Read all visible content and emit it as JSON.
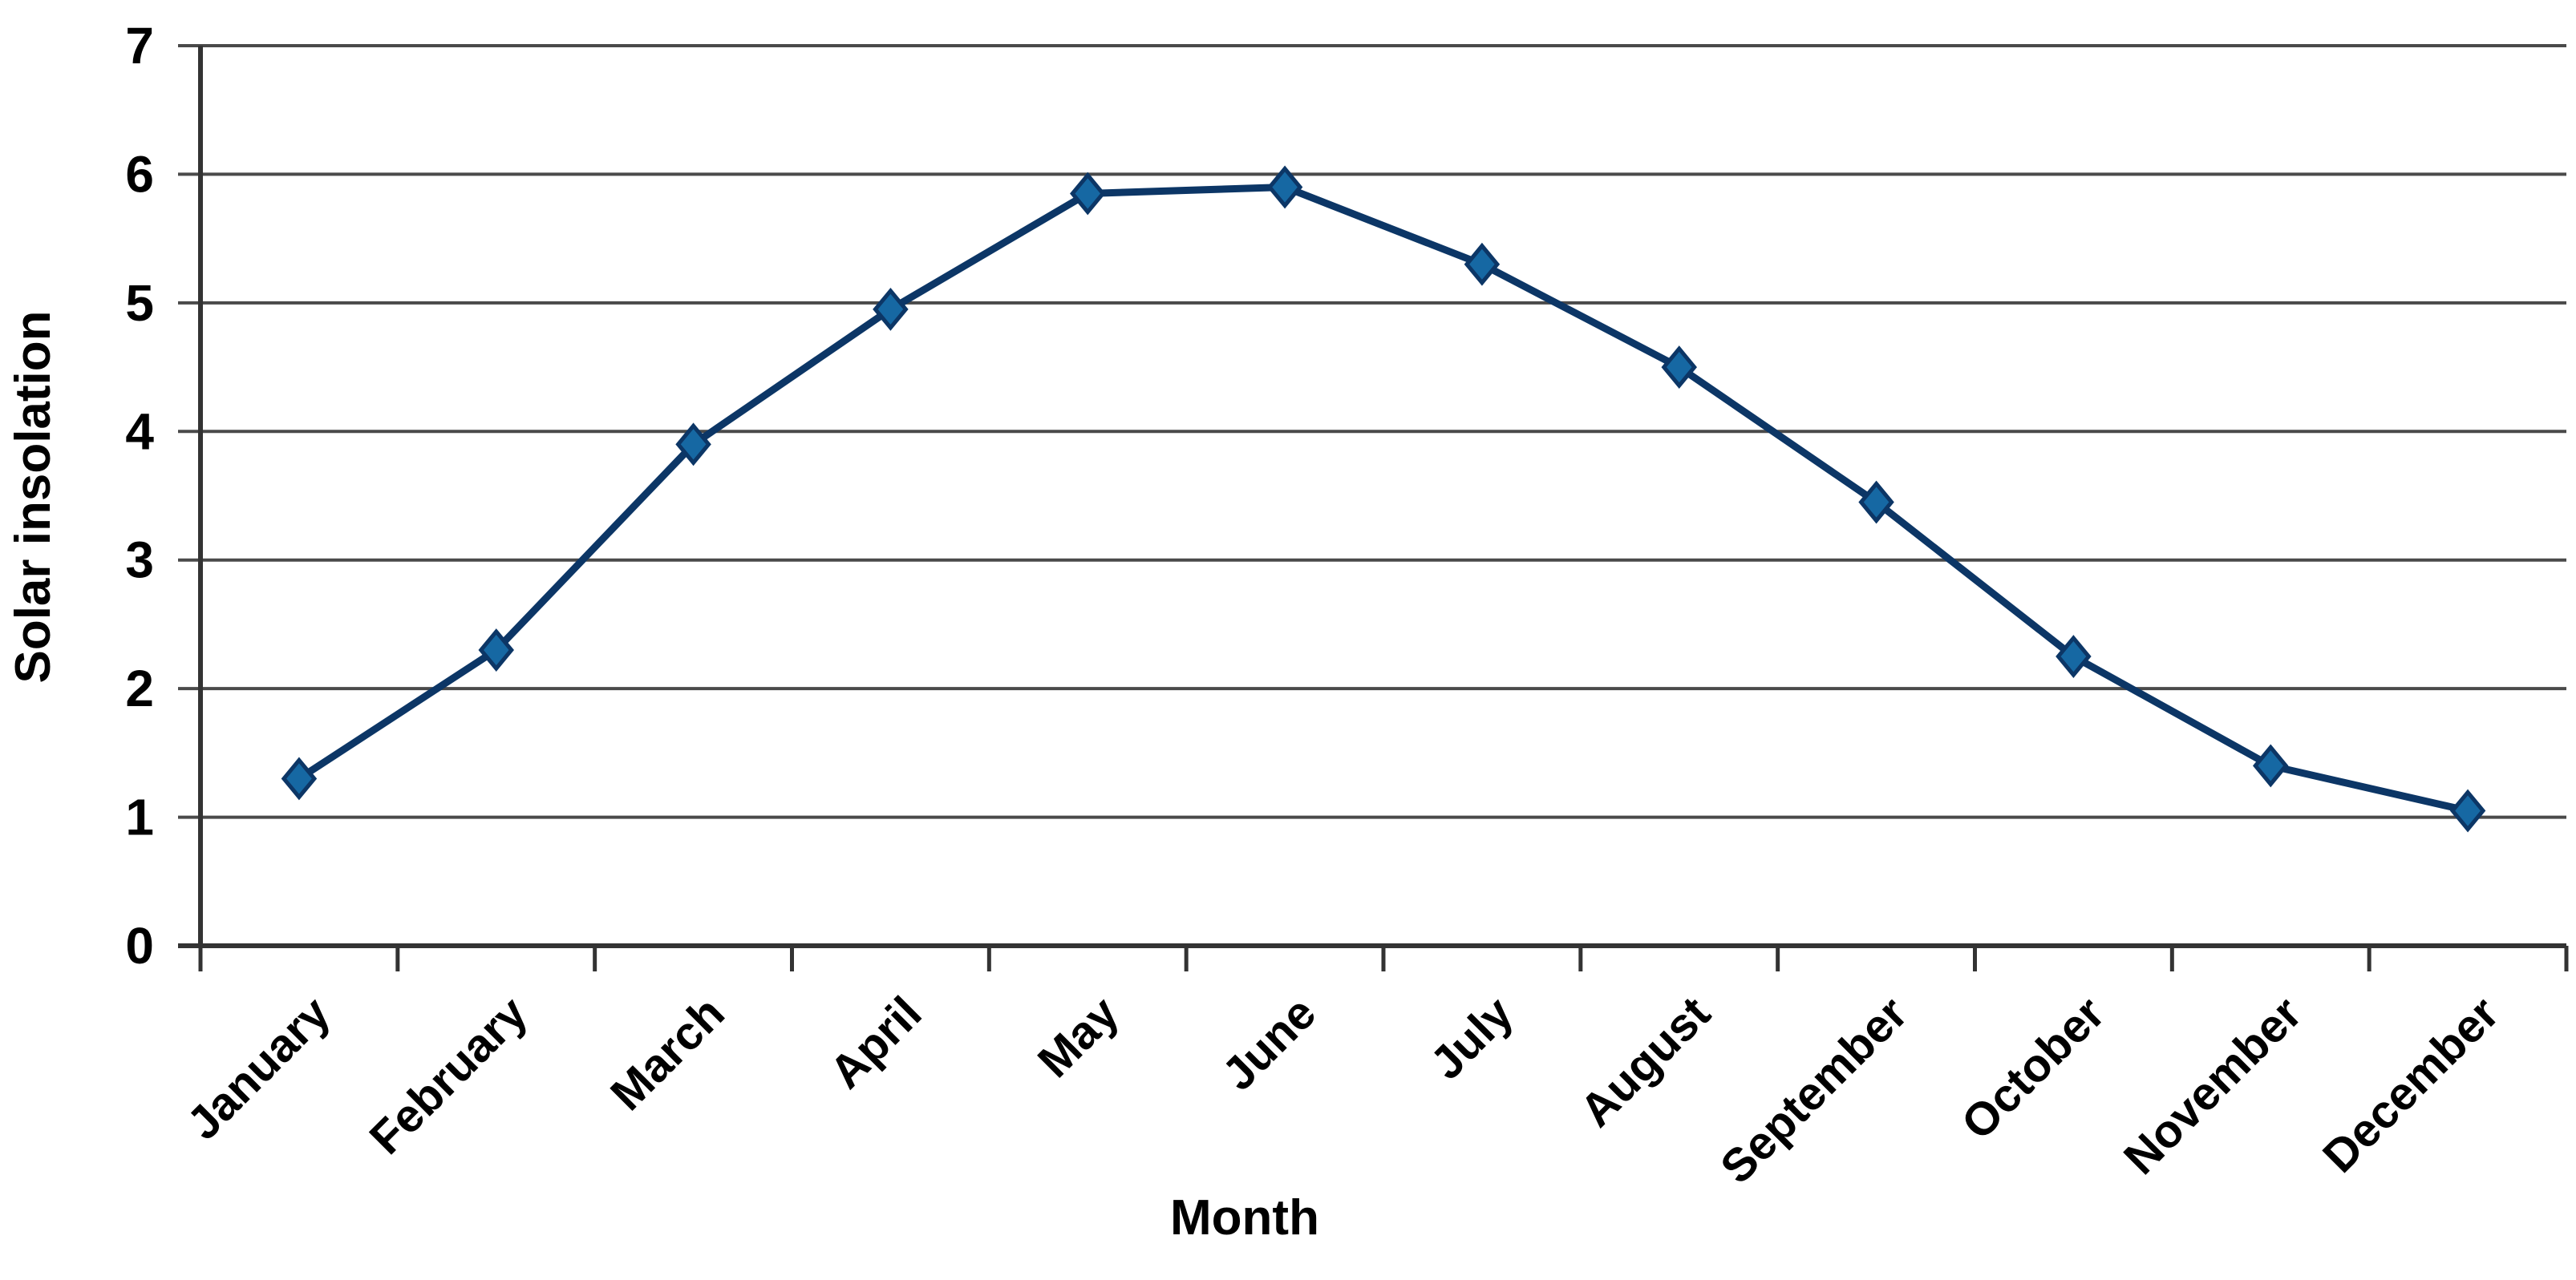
{
  "chart_data": {
    "type": "line",
    "title": "",
    "categories": [
      "January",
      "February",
      "March",
      "April",
      "May",
      "June",
      "July",
      "August",
      "September",
      "October",
      "November",
      "December"
    ],
    "values": [
      1.3,
      2.3,
      3.9,
      4.95,
      5.85,
      5.9,
      5.3,
      4.5,
      3.45,
      2.25,
      1.4,
      1.05
    ],
    "xlabel": "Month",
    "ylabel": "Solar insolation",
    "ylim": [
      0,
      7
    ],
    "yticks": [
      0,
      1,
      2,
      3,
      4,
      5,
      6,
      7
    ],
    "grid": "horizontal",
    "legend": "none",
    "marker": "diamond",
    "colors": {
      "line": "#0c3666",
      "marker_fill": "#1668a3",
      "gridline": "#4a4a4a",
      "axis": "#333333",
      "text": "#000000",
      "background": "#ffffff"
    }
  }
}
